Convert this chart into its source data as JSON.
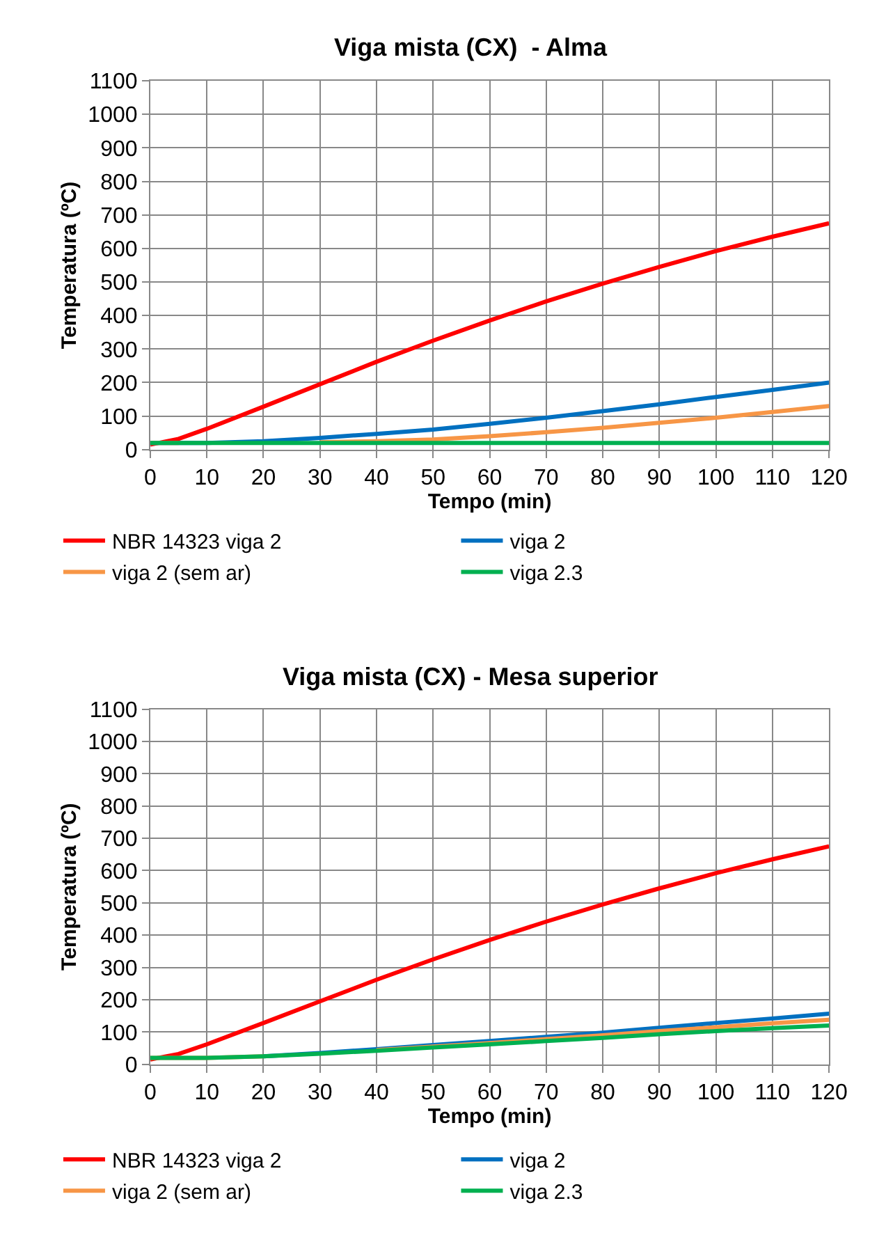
{
  "chart_data": [
    {
      "type": "line",
      "title": "Viga mista (CX)  - Alma",
      "xlabel": "Tempo (min)",
      "ylabel": "Temperatura (ºC)",
      "x": [
        0,
        5,
        10,
        20,
        30,
        40,
        50,
        60,
        70,
        80,
        90,
        100,
        110,
        120
      ],
      "xlim": [
        0,
        120
      ],
      "xticks": [
        0,
        10,
        20,
        30,
        40,
        50,
        60,
        70,
        80,
        90,
        100,
        110,
        120
      ],
      "ylim": [
        0,
        1100
      ],
      "yticks": [
        0,
        100,
        200,
        300,
        400,
        500,
        600,
        700,
        800,
        900,
        1000,
        1100
      ],
      "grid": true,
      "legend": "bottom",
      "series": [
        {
          "name": "NBR 14323 viga 2",
          "color": "#ff0000",
          "values": [
            15,
            32,
            62,
            128,
            195,
            262,
            325,
            385,
            442,
            495,
            545,
            592,
            635,
            675
          ]
        },
        {
          "name": "viga 2",
          "color": "#0070c0",
          "values": [
            20,
            20,
            20,
            25,
            35,
            47,
            60,
            77,
            95,
            115,
            135,
            157,
            178,
            200
          ]
        },
        {
          "name": "viga 2 (sem ar)",
          "color": "#f79646",
          "values": [
            20,
            20,
            null,
            null,
            22,
            25,
            30,
            40,
            52,
            65,
            80,
            95,
            112,
            130
          ]
        },
        {
          "name": "viga 2.3",
          "color": "#00b050",
          "values": [
            20,
            20,
            20,
            20,
            20,
            20,
            20,
            20,
            20,
            20,
            20,
            20,
            20,
            20
          ]
        }
      ]
    },
    {
      "type": "line",
      "title": "Viga mista (CX) - Mesa superior",
      "xlabel": "Tempo (min)",
      "ylabel": "Temperatura (ºC)",
      "x": [
        0,
        5,
        10,
        20,
        30,
        40,
        50,
        60,
        70,
        80,
        90,
        100,
        110,
        120
      ],
      "xlim": [
        0,
        120
      ],
      "xticks": [
        0,
        10,
        20,
        30,
        40,
        50,
        60,
        70,
        80,
        90,
        100,
        110,
        120
      ],
      "ylim": [
        0,
        1100
      ],
      "yticks": [
        0,
        100,
        200,
        300,
        400,
        500,
        600,
        700,
        800,
        900,
        1000,
        1100
      ],
      "grid": true,
      "legend": "bottom",
      "series": [
        {
          "name": "NBR 14323 viga 2",
          "color": "#ff0000",
          "values": [
            15,
            32,
            62,
            128,
            195,
            262,
            325,
            385,
            442,
            495,
            545,
            592,
            635,
            675
          ]
        },
        {
          "name": "viga 2",
          "color": "#0070c0",
          "values": [
            null,
            null,
            null,
            25,
            35,
            47,
            60,
            72,
            85,
            98,
            113,
            128,
            142,
            157
          ]
        },
        {
          "name": "viga 2 (sem ar)",
          "color": "#f79646",
          "values": [
            20,
            20,
            20,
            25,
            null,
            44,
            55,
            66,
            78,
            90,
            103,
            115,
            127,
            138
          ]
        },
        {
          "name": "viga 2.3",
          "color": "#00b050",
          "values": [
            20,
            20,
            20,
            25,
            33,
            42,
            52,
            62,
            72,
            82,
            93,
            103,
            112,
            120
          ]
        }
      ]
    }
  ]
}
